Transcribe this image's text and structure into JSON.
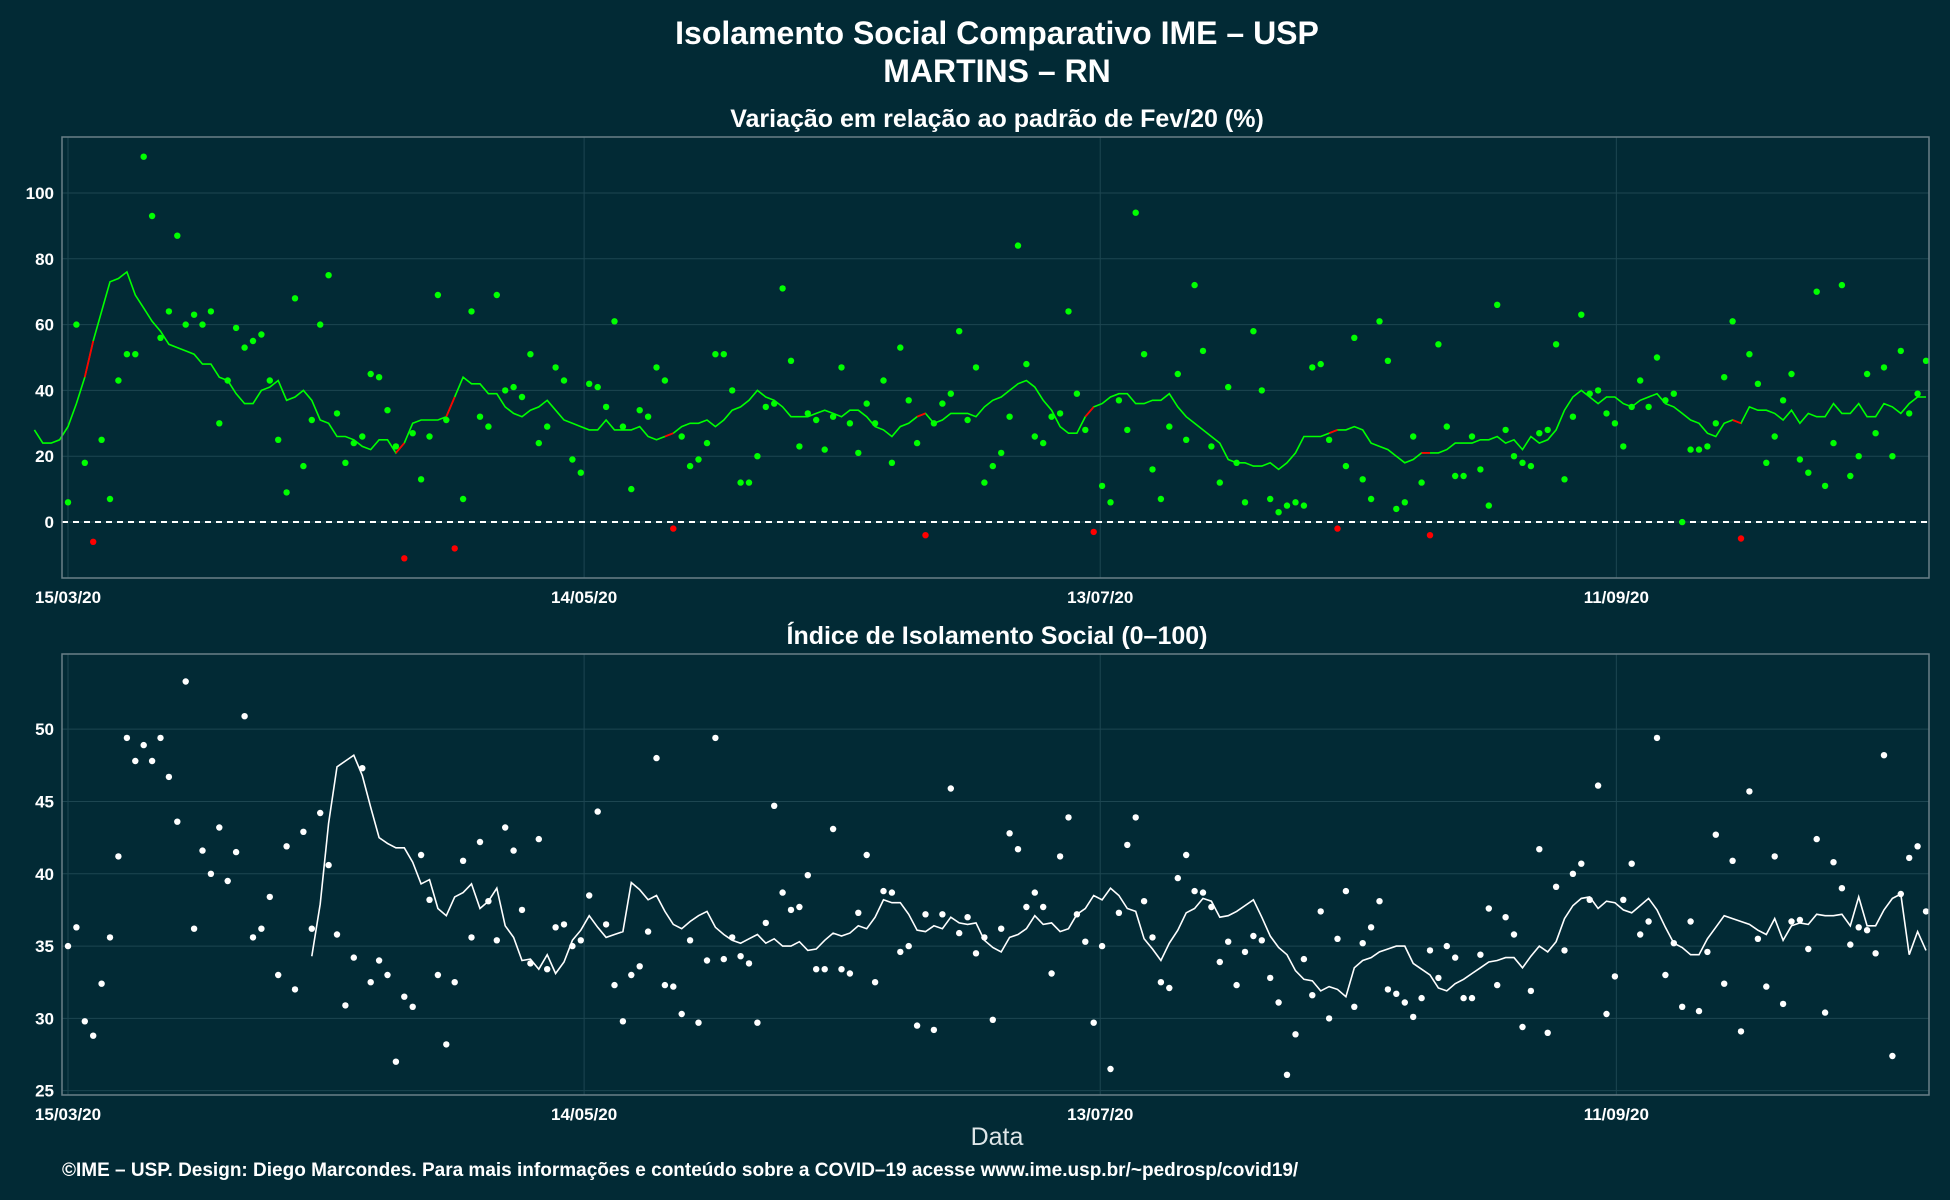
{
  "header": {
    "title": "Isolamento Social Comparativo IME – USP",
    "subtitle": "MARTINS – RN"
  },
  "footer": {
    "xlabel": "Data",
    "credit": "©IME – USP. Design: Diego Marcondes. Para mais informações e conteúdo sobre a COVID–19 acesse www.ime.usp.br/~pedrosp/covid19/"
  },
  "colors": {
    "background": "#022a35",
    "positive_point": "#00ff00",
    "negative_point": "#ff0000",
    "index_point": "#ffffff",
    "text": "#ffffff",
    "grid": "#1d4651"
  },
  "chart_data": [
    {
      "type": "scatter",
      "title": "Variação em relação ao padrão de Fev/20 (%)",
      "xlabel": "",
      "ylabel": "",
      "x_ticks": [
        "15/03/20",
        "14/05/20",
        "13/07/20",
        "11/09/20"
      ],
      "y_ticks": [
        0,
        20,
        40,
        60,
        80,
        100
      ],
      "ylim": [
        -17,
        117
      ],
      "x_start": "15/03/20",
      "x_end": "17/10/20",
      "reference_line": 0,
      "moving_average": "7-day",
      "values": [
        6,
        60,
        18,
        -6,
        25,
        7,
        43,
        51,
        51,
        111,
        93,
        56,
        64,
        87,
        60,
        63,
        60,
        64,
        30,
        43,
        59,
        53,
        55,
        57,
        43,
        25,
        9,
        68,
        17,
        31,
        60,
        75,
        33,
        18,
        24,
        26,
        45,
        44,
        34,
        23,
        -11,
        27,
        13,
        26,
        69,
        31,
        -8,
        7,
        64,
        32,
        29,
        69,
        40,
        41,
        38,
        51,
        24,
        29,
        47,
        43,
        19,
        15,
        42,
        41,
        35,
        61,
        29,
        10,
        34,
        32,
        47,
        43,
        -2,
        26,
        17,
        19,
        24,
        51,
        51,
        40,
        12,
        12,
        20,
        35,
        36,
        71,
        49,
        23,
        33,
        31,
        22,
        32,
        47,
        30,
        21,
        36,
        30,
        43,
        18,
        53,
        37,
        24,
        -4,
        30,
        36,
        39,
        58,
        31,
        47,
        12,
        17,
        21,
        32,
        84,
        48,
        26,
        24,
        32,
        33,
        64,
        39,
        28,
        -3,
        11,
        6,
        37,
        28,
        94,
        51,
        16,
        7,
        29,
        45,
        25,
        72,
        52,
        23,
        12,
        41,
        18,
        6,
        58,
        40,
        7,
        3,
        5,
        6,
        5,
        47,
        48,
        25,
        -2,
        17,
        56,
        13,
        7,
        61,
        49,
        4,
        6,
        26,
        12,
        -4,
        54,
        29,
        14,
        14,
        26,
        16,
        5,
        66,
        28,
        20,
        18,
        17,
        27,
        28,
        54,
        13,
        32,
        63,
        39,
        40,
        33,
        30,
        23,
        35,
        43,
        35,
        50,
        37,
        39,
        0,
        22,
        22,
        23,
        30,
        44,
        61,
        -5,
        51,
        42,
        18,
        26,
        37,
        45,
        19,
        15,
        70,
        11,
        24,
        72,
        14,
        20,
        45,
        27,
        47,
        20,
        52,
        33,
        39,
        49
      ],
      "moving_average_values": [
        28,
        24,
        24,
        25,
        29,
        36,
        44,
        55,
        64,
        73,
        74,
        76,
        69,
        65,
        61,
        58,
        54,
        53,
        52,
        51,
        48,
        48,
        44,
        43,
        39,
        36,
        36,
        40,
        41,
        43,
        37,
        38,
        40,
        37,
        31,
        30,
        26,
        26,
        25,
        23,
        22,
        25,
        25,
        21,
        24,
        30,
        31,
        31,
        31,
        32,
        38,
        44,
        42,
        42,
        39,
        39,
        35,
        33,
        32,
        34,
        35,
        37,
        34,
        31,
        30,
        29,
        28,
        28,
        31,
        28,
        28,
        28,
        29,
        26,
        25,
        26,
        27,
        29,
        30,
        30,
        31,
        29,
        31,
        34,
        35,
        37,
        40,
        38,
        37,
        35,
        32,
        32,
        32,
        33,
        34,
        33,
        32,
        34,
        34,
        32,
        29,
        28,
        26,
        29,
        30,
        32,
        33,
        30,
        31,
        33,
        33,
        33,
        32,
        35,
        37,
        38,
        40,
        42,
        43,
        41,
        37,
        34,
        29,
        27,
        27,
        32,
        35,
        36,
        38,
        39,
        39,
        36,
        36,
        37,
        37,
        39,
        35,
        32,
        30,
        28,
        26,
        24,
        19,
        18,
        18,
        17,
        17,
        18,
        16,
        18,
        21,
        26,
        26,
        26,
        27,
        28,
        28,
        29,
        28,
        24,
        23,
        22,
        20,
        18,
        19,
        21,
        21,
        21,
        22,
        24,
        24,
        24,
        25,
        25,
        26,
        24,
        25,
        22,
        26,
        24,
        25,
        28,
        34,
        38,
        40,
        38,
        36,
        38,
        38,
        36,
        35,
        37,
        38,
        39,
        36,
        35,
        33,
        31,
        30,
        27,
        26,
        30,
        31,
        30,
        35,
        34,
        34,
        33,
        31,
        34,
        30,
        33,
        32,
        32,
        36,
        33,
        33,
        36,
        32,
        32,
        36,
        35,
        33,
        36,
        38,
        38
      ]
    },
    {
      "type": "scatter",
      "title": "Índice de Isolamento Social (0–100)",
      "xlabel": "Data",
      "ylabel": "",
      "x_ticks": [
        "15/03/20",
        "14/05/20",
        "13/07/20",
        "11/09/20"
      ],
      "y_ticks": [
        25,
        30,
        35,
        40,
        45,
        50
      ],
      "ylim": [
        24.7,
        55.2
      ],
      "x_start": "15/03/20",
      "x_end": "17/10/20",
      "moving_average": "7-day",
      "values": [
        35.0,
        36.3,
        29.8,
        28.8,
        32.4,
        35.6,
        41.2,
        49.4,
        47.8,
        48.9,
        47.8,
        49.4,
        46.7,
        43.6,
        53.3,
        36.2,
        41.6,
        40.0,
        43.2,
        39.5,
        41.5,
        50.9,
        35.6,
        36.2,
        38.4,
        33.0,
        41.9,
        32.0,
        42.9,
        36.2,
        44.2,
        40.6,
        35.8,
        30.9,
        34.2,
        47.3,
        32.5,
        34.0,
        33.0,
        27.0,
        31.5,
        30.8,
        41.3,
        38.2,
        33.0,
        28.2,
        32.5,
        40.9,
        35.6,
        42.2,
        38.1,
        35.4,
        43.2,
        41.6,
        37.5,
        33.8,
        42.4,
        33.4,
        36.3,
        36.5,
        35.0,
        35.4,
        38.5,
        44.3,
        36.5,
        32.3,
        29.8,
        33.0,
        33.6,
        36.0,
        48.0,
        32.3,
        32.2,
        30.3,
        35.4,
        29.7,
        34.0,
        49.4,
        34.1,
        35.6,
        34.3,
        33.8,
        29.7,
        36.6,
        44.7,
        38.7,
        37.5,
        37.7,
        39.9,
        33.4,
        33.4,
        43.1,
        33.4,
        33.1,
        37.3,
        41.3,
        32.5,
        38.8,
        38.7,
        34.6,
        35.0,
        29.5,
        37.2,
        29.2,
        37.2,
        45.9,
        35.9,
        37.0,
        34.5,
        35.6,
        29.9,
        36.2,
        42.8,
        41.7,
        37.7,
        38.7,
        37.7,
        33.1,
        41.2,
        43.9,
        37.2,
        35.3,
        29.7,
        35.0,
        26.5,
        37.3,
        42.0,
        43.9,
        38.1,
        35.6,
        32.5,
        32.1,
        39.7,
        41.3,
        38.8,
        38.7,
        37.7,
        33.9,
        35.3,
        32.3,
        34.6,
        35.7,
        35.4,
        32.8,
        31.1,
        26.1,
        28.9,
        34.1,
        31.6,
        37.4,
        30.0,
        35.5,
        38.8,
        30.8,
        35.2,
        36.3,
        38.1,
        32.0,
        31.7,
        31.1,
        30.1,
        31.4,
        34.7,
        32.8,
        35.0,
        34.2,
        31.4,
        31.4,
        34.4,
        37.6,
        32.3,
        37.0,
        35.8,
        29.4,
        31.9,
        41.7,
        29.0,
        39.1,
        34.7,
        40.0,
        40.7,
        38.2,
        46.1,
        30.3,
        32.9,
        38.2,
        40.7,
        35.8,
        36.7,
        49.4,
        33.0,
        35.2,
        30.8,
        36.7,
        30.5,
        34.6,
        42.7,
        32.4,
        40.9,
        29.1,
        45.7,
        35.5,
        32.2,
        41.2,
        31.0,
        36.7,
        36.8,
        34.8,
        42.4,
        30.4,
        40.8,
        39.0,
        35.1,
        36.3,
        36.1,
        34.5,
        48.2,
        27.4,
        38.6,
        41.1,
        41.9,
        37.4
      ],
      "moving_average_values": [
        34.3,
        37.9,
        43.5,
        47.4,
        47.8,
        48.2,
        46.8,
        44.6,
        42.5,
        42.1,
        41.8,
        41.8,
        40.8,
        39.3,
        39.6,
        37.6,
        37.1,
        38.4,
        38.7,
        39.3,
        37.6,
        38.1,
        39.0,
        36.4,
        35.6,
        34.0,
        34.1,
        33.4,
        34.4,
        33.1,
        33.9,
        35.4,
        36.1,
        37.1,
        36.3,
        35.6,
        35.8,
        36.0,
        39.4,
        38.9,
        38.2,
        38.5,
        37.4,
        36.5,
        36.2,
        36.7,
        37.1,
        37.4,
        36.3,
        35.8,
        35.4,
        35.2,
        35.5,
        35.8,
        35.2,
        35.5,
        35.0,
        35.0,
        35.3,
        34.7,
        34.8,
        35.4,
        35.9,
        35.7,
        35.9,
        36.4,
        36.2,
        37.0,
        38.2,
        38.0,
        38.0,
        37.2,
        36.1,
        36.0,
        36.4,
        36.2,
        37.0,
        36.6,
        36.5,
        36.6,
        35.4,
        34.9,
        34.6,
        35.6,
        35.8,
        36.2,
        37.1,
        36.5,
        36.6,
        36.0,
        36.2,
        37.2,
        37.6,
        38.5,
        38.2,
        39.0,
        38.5,
        37.6,
        37.4,
        35.5,
        34.8,
        34.0,
        35.2,
        36.1,
        37.3,
        37.6,
        38.3,
        38.1,
        37.0,
        37.1,
        37.4,
        37.8,
        38.2,
        37.0,
        35.7,
        34.9,
        34.4,
        33.3,
        32.7,
        32.6,
        31.9,
        32.2,
        32.0,
        31.5,
        33.5,
        34.0,
        34.2,
        34.6,
        34.8,
        35.0,
        35.0,
        33.8,
        33.4,
        33.0,
        32.1,
        31.9,
        32.4,
        32.7,
        33.1,
        33.5,
        33.9,
        34.0,
        34.2,
        34.2,
        33.5,
        34.3,
        35.0,
        34.6,
        35.3,
        36.9,
        37.8,
        38.3,
        38.4,
        37.6,
        38.1,
        38.0,
        37.5,
        37.3,
        37.8,
        38.3,
        37.5,
        36.3,
        35.2,
        34.9,
        34.4,
        34.4,
        35.5,
        36.3,
        37.1,
        36.9,
        36.7,
        36.5,
        36.1,
        35.8,
        36.9,
        35.4,
        36.4,
        36.6,
        36.5,
        37.2,
        37.1,
        37.1,
        37.2,
        36.4,
        38.4,
        36.4,
        36.4,
        37.5,
        38.3,
        38.6,
        34.4,
        36.0,
        34.7
      ]
    }
  ]
}
